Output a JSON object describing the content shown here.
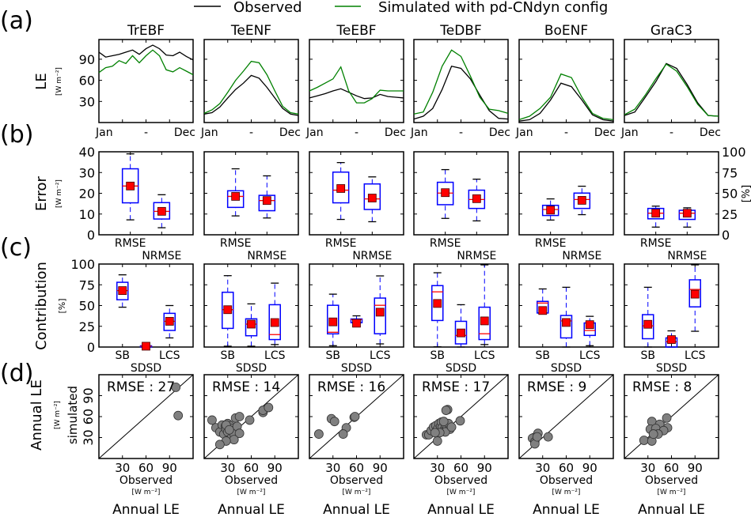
{
  "legend": {
    "observed": "Observed",
    "simulated": "Simulated with pd-CNdyn config"
  },
  "panel_labels": [
    "(a)",
    "(b)",
    "(c)",
    "(d)"
  ],
  "colors": {
    "observed": "#000000",
    "simulated": "#008000",
    "box": "#0000ff",
    "median": "#ff0000",
    "mean": "#ff0000",
    "scatter": "#808080",
    "rmse_text": "#0000ff"
  },
  "chart_data": {
    "pfts": [
      "TrEBF",
      "TeENF",
      "TeEBF",
      "TeDBF",
      "BoENF",
      "GraC3"
    ],
    "row_a": {
      "type": "line",
      "ylabel": "LE",
      "yunit": "[W m⁻²]",
      "ylim": [
        0,
        118
      ],
      "yticks": [
        30,
        60,
        90
      ],
      "xticklabels": [
        "Jan",
        "-",
        "Dec"
      ],
      "series": [
        {
          "observed": [
            100,
            93,
            95,
            97,
            100,
            103,
            97,
            105,
            110,
            105,
            96,
            95,
            100,
            94,
            89
          ],
          "simulated": [
            71,
            78,
            80,
            88,
            84,
            95,
            85,
            95,
            103,
            95,
            75,
            72,
            78,
            73,
            68
          ]
        },
        {
          "observed": [
            12,
            14,
            22,
            35,
            47,
            56,
            67,
            63,
            50,
            35,
            20,
            12,
            10
          ],
          "simulated": [
            13,
            18,
            27,
            43,
            60,
            73,
            87,
            85,
            68,
            45,
            23,
            14,
            12
          ]
        },
        {
          "observed": [
            35,
            38,
            41,
            45,
            48,
            43,
            38,
            34,
            35,
            40,
            37,
            36,
            35
          ],
          "simulated": [
            45,
            50,
            56,
            62,
            79,
            45,
            28,
            28,
            34,
            46,
            45,
            45,
            45
          ]
        },
        {
          "observed": [
            5,
            9,
            20,
            47,
            80,
            77,
            62,
            39,
            17,
            6,
            5
          ],
          "simulated": [
            12,
            15,
            43,
            80,
            103,
            94,
            66,
            36,
            19,
            17,
            13
          ]
        },
        {
          "observed": [
            2,
            4,
            13,
            32,
            56,
            51,
            32,
            11,
            4,
            2
          ],
          "simulated": [
            4,
            9,
            20,
            36,
            69,
            64,
            36,
            13,
            6,
            4
          ]
        },
        {
          "observed": [
            10,
            15,
            36,
            58,
            84,
            77,
            54,
            28,
            10,
            9
          ],
          "simulated": [
            11,
            19,
            39,
            62,
            83,
            73,
            51,
            26,
            10,
            9
          ]
        }
      ]
    },
    "row_b": {
      "type": "box",
      "ylabel": "Error",
      "yunit": "[W m⁻²]",
      "ylim": [
        0,
        40
      ],
      "yticks": [
        0,
        10,
        20,
        30,
        40
      ],
      "right_ticks": [
        0,
        25,
        50,
        75,
        100
      ],
      "right_unit": "[%]",
      "categories": [
        "RMSE",
        "NRMSE"
      ],
      "box_format": [
        "whisker_low",
        "q1",
        "median",
        "q3",
        "whisker_high",
        "mean"
      ],
      "panels": [
        [
          [
            7.2,
            15.4,
            23.5,
            31.8,
            39,
            23.5
          ],
          [
            3.4,
            7.6,
            11.3,
            15.5,
            19.3,
            11.3
          ]
        ],
        [
          [
            9.1,
            13.2,
            18.5,
            21.2,
            31.8,
            18.5
          ],
          [
            8.1,
            11.6,
            16.5,
            19,
            28.4,
            16.5
          ]
        ],
        [
          [
            7.4,
            15.4,
            21.5,
            30.2,
            34.8,
            22.3
          ],
          [
            6.3,
            12.2,
            17.3,
            24.5,
            27.9,
            17.7
          ]
        ],
        [
          [
            7.9,
            14.5,
            20.1,
            25.3,
            31.4,
            20.3
          ],
          [
            6.7,
            12.7,
            17,
            21.5,
            26.8,
            17.4
          ]
        ],
        [
          [
            7.1,
            9.3,
            12.2,
            14.2,
            17.3,
            11.9
          ],
          [
            9.7,
            12.7,
            17,
            20.1,
            23.4,
            16.6
          ]
        ],
        [
          [
            3.7,
            7.7,
            10.4,
            12.7,
            13.8,
            10.4
          ],
          [
            3.7,
            7.4,
            10.4,
            11.8,
            13,
            10.4
          ]
        ]
      ]
    },
    "row_c": {
      "type": "box",
      "ylabel": "Contribution",
      "yunit": "[%]",
      "ylim": [
        0,
        100
      ],
      "yticks": [
        0,
        25,
        50,
        75,
        100
      ],
      "categories": [
        "SB",
        "SDSD",
        "LCS"
      ],
      "box_format": [
        "whisker_low",
        "q1",
        "median",
        "q3",
        "whisker_high",
        "mean"
      ],
      "panels": [
        [
          [
            48,
            57,
            68,
            78,
            87,
            68
          ],
          [
            0,
            0,
            1,
            1.5,
            2,
            1
          ],
          [
            11,
            20,
            31,
            40.6,
            50,
            31
          ]
        ],
        [
          [
            1,
            22.5,
            45,
            66,
            86,
            45
          ],
          [
            1,
            13.6,
            27.6,
            34,
            52,
            27.6
          ],
          [
            3,
            9,
            15,
            51,
            77,
            29.5
          ]
        ],
        [
          [
            1.6,
            15.9,
            17.8,
            50.3,
            63.7,
            30.3
          ],
          [
            29,
            29.3,
            33,
            33.8,
            37.6,
            28.7
          ],
          [
            3.8,
            16,
            50.3,
            59,
            85.7,
            42
          ]
        ],
        [
          [
            0.3,
            32,
            66.5,
            74,
            89.5,
            52.5
          ],
          [
            0,
            3.8,
            14,
            31,
            51,
            17
          ],
          [
            3,
            9,
            16,
            48,
            99,
            31.5
          ]
        ],
        [
          [
            41,
            41,
            53,
            55,
            70,
            44
          ],
          [
            0,
            11,
            31.5,
            38,
            72,
            29.6
          ],
          [
            1.6,
            14,
            20,
            29,
            37,
            27
          ]
        ],
        [
          [
            0,
            10,
            25.5,
            39,
            72,
            27.4
          ],
          [
            0,
            0,
            6.4,
            11,
            19.5,
            9
          ],
          [
            19,
            48.4,
            69.4,
            81,
            99,
            63.7
          ]
        ]
      ]
    },
    "row_d": {
      "type": "scatter",
      "ylabel": "Annual LE",
      "ylabel2": "simulated",
      "yunit": "[W m⁻²]",
      "xlabel": "Observed",
      "xunit": "[W m⁻²]",
      "bottom_label": "Annual LE",
      "xlim": [
        0,
        120
      ],
      "ylim": [
        0,
        120
      ],
      "ticks": [
        30,
        60,
        90
      ],
      "rmse_labels": [
        "RMSE : 27",
        "RMSE : 14",
        "RMSE : 16",
        "RMSE : 17",
        "RMSE : 9",
        "RMSE : 8"
      ],
      "points": [
        [
          [
            98,
            102
          ],
          [
            101,
            61.5
          ]
        ],
        [
          [
            10,
            55
          ],
          [
            15,
            44
          ],
          [
            20,
            38
          ],
          [
            23,
            48
          ],
          [
            25,
            35
          ],
          [
            27,
            46
          ],
          [
            28,
            42
          ],
          [
            30,
            50
          ],
          [
            30,
            38
          ],
          [
            32,
            44
          ],
          [
            33,
            47
          ],
          [
            35,
            43
          ],
          [
            35,
            30
          ],
          [
            37,
            40
          ],
          [
            38,
            35
          ],
          [
            40,
            58
          ],
          [
            42,
            46
          ],
          [
            45,
            60
          ],
          [
            45,
            36
          ],
          [
            38,
            27
          ],
          [
            28,
            25
          ],
          [
            20,
            20
          ],
          [
            58,
            55
          ],
          [
            75,
            66
          ],
          [
            75,
            69
          ],
          [
            82,
            73
          ],
          [
            28,
            48
          ],
          [
            32,
            41
          ]
        ],
        [
          [
            12,
            35
          ],
          [
            28,
            57
          ],
          [
            32,
            53
          ],
          [
            47,
            44
          ],
          [
            43,
            35
          ],
          [
            57,
            59
          ],
          [
            58,
            60
          ]
        ],
        [
          [
            43,
            70
          ],
          [
            41,
            69
          ],
          [
            59,
            54
          ],
          [
            16,
            34
          ],
          [
            19,
            34
          ],
          [
            30,
            25
          ],
          [
            22,
            40
          ],
          [
            25,
            45
          ],
          [
            28,
            47
          ],
          [
            30,
            42
          ],
          [
            32,
            50
          ],
          [
            34,
            46
          ],
          [
            35,
            52
          ],
          [
            36,
            44
          ],
          [
            38,
            40
          ],
          [
            40,
            48
          ],
          [
            42,
            43
          ],
          [
            44,
            50
          ],
          [
            46,
            42
          ],
          [
            40,
            38
          ],
          [
            33,
            37
          ],
          [
            27,
            37
          ],
          [
            38,
            53
          ],
          [
            48,
            45
          ]
        ],
        [
          [
            24,
            36
          ],
          [
            19,
            30
          ],
          [
            17,
            29
          ],
          [
            20,
            24
          ],
          [
            20,
            21
          ],
          [
            37,
            31
          ],
          [
            23,
            31
          ]
        ],
        [
          [
            25,
            26
          ],
          [
            35,
            25
          ],
          [
            35,
            53
          ],
          [
            54,
            58
          ],
          [
            55,
            44
          ],
          [
            45,
            49
          ],
          [
            33,
            42
          ],
          [
            40,
            43
          ],
          [
            50,
            40
          ],
          [
            43,
            35
          ],
          [
            37,
            35
          ]
        ]
      ]
    }
  }
}
